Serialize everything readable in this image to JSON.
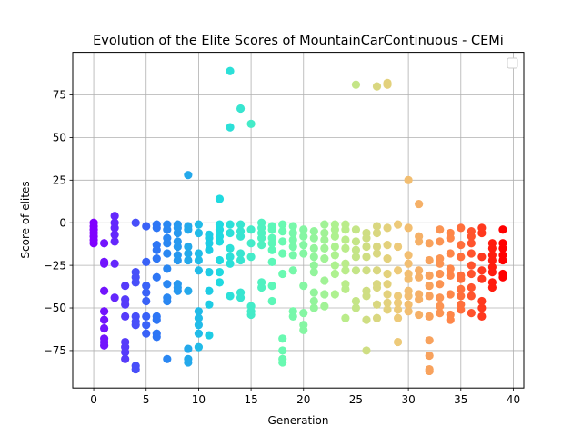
{
  "chart_data": {
    "type": "scatter",
    "title": "Evolution of the Elite Scores of MountainCarContinuous - CEMi",
    "xlabel": "Generation",
    "ylabel": "Score of elites",
    "xlim": [
      -2,
      41
    ],
    "ylim": [
      -97,
      100
    ],
    "xticks": [
      0,
      5,
      10,
      15,
      20,
      25,
      30,
      35,
      40
    ],
    "yticks": [
      -75,
      -50,
      -25,
      0,
      25,
      50,
      75
    ],
    "grid": true,
    "legend": "upper right, empty",
    "colormap": "rainbow",
    "generations": [
      {
        "x": 0,
        "y": [
          0,
          -2,
          -4,
          -6,
          -8,
          -10,
          -12
        ]
      },
      {
        "x": 1,
        "y": [
          -12,
          -23,
          -24,
          -40,
          -52,
          -57,
          -62,
          -68,
          -70,
          -72
        ]
      },
      {
        "x": 2,
        "y": [
          4,
          0,
          -3,
          -7,
          -11,
          -24,
          -44
        ]
      },
      {
        "x": 3,
        "y": [
          -37,
          -45,
          -48,
          -55,
          -70,
          -73,
          -76,
          -80
        ]
      },
      {
        "x": 4,
        "y": [
          0,
          -29,
          -32,
          -35,
          -55,
          -58,
          -60,
          -84,
          -86
        ]
      },
      {
        "x": 5,
        "y": [
          -2,
          -23,
          -37,
          -41,
          -46,
          -55,
          -60,
          -65
        ]
      },
      {
        "x": 6,
        "y": [
          -1,
          -3,
          -13,
          -16,
          -21,
          -32,
          -55,
          -57,
          -65,
          -67
        ]
      },
      {
        "x": 7,
        "y": [
          -1,
          -4,
          -9,
          -12,
          -18,
          -27,
          -36,
          -44,
          -46,
          -80
        ]
      },
      {
        "x": 8,
        "y": [
          -1,
          -3,
          -6,
          -11,
          -14,
          -19,
          -22,
          -36,
          -38,
          -40
        ]
      },
      {
        "x": 9,
        "y": [
          28,
          -2,
          -4,
          -14,
          -18,
          -22,
          -40,
          -74,
          -80,
          -82
        ]
      },
      {
        "x": 10,
        "y": [
          -1,
          -6,
          -18,
          -22,
          -28,
          -52,
          -56,
          -60,
          -65,
          -73
        ]
      },
      {
        "x": 11,
        "y": [
          -7,
          -9,
          -12,
          -16,
          -29,
          -40,
          -48,
          -66
        ]
      },
      {
        "x": 12,
        "y": [
          14,
          -1,
          -4,
          -8,
          -11,
          -22,
          -29,
          -35
        ]
      },
      {
        "x": 13,
        "y": [
          89,
          56,
          -1,
          -6,
          -15,
          -20,
          -24,
          -43
        ]
      },
      {
        "x": 14,
        "y": [
          67,
          -1,
          -5,
          -8,
          -18,
          -22,
          -41,
          -44
        ]
      },
      {
        "x": 15,
        "y": [
          58,
          -4,
          -12,
          -20,
          -49,
          -52,
          -54
        ]
      },
      {
        "x": 16,
        "y": [
          0,
          -3,
          -6,
          -9,
          -13,
          -35,
          -38
        ]
      },
      {
        "x": 17,
        "y": [
          -2,
          -4,
          -9,
          -12,
          -16,
          -23,
          -37,
          -46
        ]
      },
      {
        "x": 18,
        "y": [
          -1,
          -5,
          -11,
          -18,
          -30,
          -68,
          -75,
          -80,
          -82
        ]
      },
      {
        "x": 19,
        "y": [
          -2,
          -6,
          -10,
          -14,
          -19,
          -28,
          -52,
          -55
        ]
      },
      {
        "x": 20,
        "y": [
          -4,
          -8,
          -13,
          -18,
          -37,
          -53,
          -60,
          -63
        ]
      },
      {
        "x": 21,
        "y": [
          -5,
          -9,
          -15,
          -20,
          -25,
          -29,
          -41,
          -46,
          -50
        ]
      },
      {
        "x": 22,
        "y": [
          -1,
          -6,
          -10,
          -15,
          -21,
          -34,
          -42,
          -49
        ]
      },
      {
        "x": 23,
        "y": [
          -1,
          -4,
          -8,
          -14,
          -19,
          -25,
          -30,
          -42
        ]
      },
      {
        "x": 24,
        "y": [
          -1,
          -4,
          -10,
          -15,
          -24,
          -28,
          -36,
          -39,
          -56
        ]
      },
      {
        "x": 25,
        "y": [
          81,
          -4,
          -11,
          -16,
          -20,
          -28,
          -46,
          -50
        ]
      },
      {
        "x": 26,
        "y": [
          -6,
          -9,
          -14,
          -20,
          -28,
          -40,
          -43,
          -57,
          -75
        ]
      },
      {
        "x": 27,
        "y": [
          80,
          -2,
          -6,
          -14,
          -18,
          -28,
          -36,
          -38,
          -48,
          -56
        ]
      },
      {
        "x": 28,
        "y": [
          82,
          81,
          -3,
          -13,
          -21,
          -30,
          -36,
          -42,
          -47,
          -51
        ]
      },
      {
        "x": 29,
        "y": [
          -1,
          -14,
          -28,
          -43,
          -47,
          -51,
          -56,
          -70
        ]
      },
      {
        "x": 30,
        "y": [
          25,
          -3,
          -19,
          -24,
          -30,
          -33,
          -40,
          -43,
          -48,
          -52
        ]
      },
      {
        "x": 31,
        "y": [
          11,
          -8,
          -11,
          -28,
          -32,
          -42,
          -45,
          -54
        ]
      },
      {
        "x": 32,
        "y": [
          -12,
          -22,
          -31,
          -37,
          -43,
          -55,
          -69,
          -78,
          -86,
          -87
        ]
      },
      {
        "x": 33,
        "y": [
          -4,
          -11,
          -21,
          -24,
          -30,
          -36,
          -44,
          -49,
          -53
        ]
      },
      {
        "x": 34,
        "y": [
          -6,
          -9,
          -18,
          -27,
          -31,
          -42,
          -54,
          -57
        ]
      },
      {
        "x": 35,
        "y": [
          -3,
          -13,
          -20,
          -31,
          -33,
          -39,
          -43,
          -48,
          -51
        ]
      },
      {
        "x": 36,
        "y": [
          -5,
          -8,
          -12,
          -18,
          -25,
          -30,
          -38,
          -43,
          -53
        ]
      },
      {
        "x": 37,
        "y": [
          -3,
          -6,
          -20,
          -28,
          -33,
          -46,
          -50,
          -55
        ]
      },
      {
        "x": 38,
        "y": [
          -12,
          -15,
          -19,
          -22,
          -26,
          -29,
          -35,
          -38
        ]
      },
      {
        "x": 39,
        "y": [
          -4,
          -12,
          -15,
          -19,
          -22,
          -30,
          -32
        ]
      }
    ]
  }
}
